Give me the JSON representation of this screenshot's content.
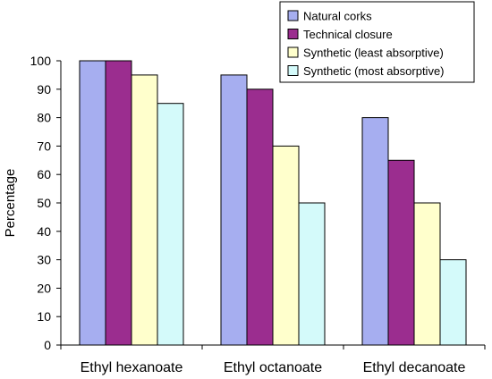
{
  "chart_data": {
    "type": "bar",
    "title": "",
    "xlabel": "",
    "ylabel": "Percentage",
    "ylim": [
      0,
      100
    ],
    "yticks": [
      0,
      10,
      20,
      30,
      40,
      50,
      60,
      70,
      80,
      90,
      100
    ],
    "grid": false,
    "legend_position": "top-right",
    "categories": [
      "Ethyl hexanoate",
      "Ethyl octanoate",
      "Ethyl decanoate"
    ],
    "series": [
      {
        "name": "Natural corks",
        "color": "#a6aef0",
        "values": [
          100,
          95,
          80
        ]
      },
      {
        "name": "Technical closure",
        "color": "#9b2d8f",
        "values": [
          100,
          90,
          65
        ]
      },
      {
        "name": "Synthetic (least absorptive)",
        "color": "#ffffcc",
        "values": [
          95,
          70,
          50
        ]
      },
      {
        "name": "Synthetic (most absorptive)",
        "color": "#d4fafa",
        "values": [
          85,
          50,
          30
        ]
      }
    ]
  }
}
